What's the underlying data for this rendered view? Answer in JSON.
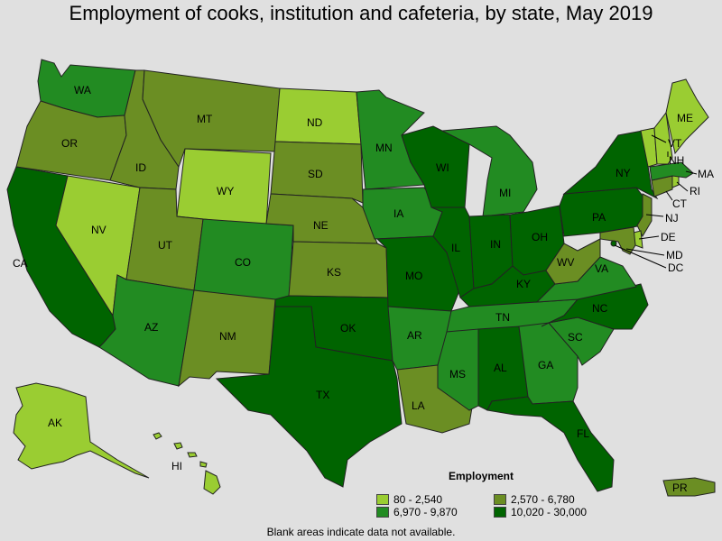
{
  "title": "Employment of cooks, institution and cafeteria, by state, May 2019",
  "footnote": "Blank areas indicate data not available.",
  "legend": {
    "title": "Employment",
    "items": [
      {
        "label": "80 - 2,540",
        "color": "#9acd32"
      },
      {
        "label": "2,570 - 6,780",
        "color": "#6b8e23"
      },
      {
        "label": "6,970 - 9,870",
        "color": "#228b22"
      },
      {
        "label": "10,020 - 30,000",
        "color": "#006400"
      }
    ]
  },
  "colors": {
    "low": "#9acd32",
    "midlow": "#6b8e23",
    "midhigh": "#228b22",
    "high": "#006400",
    "background": "#e0e0e0"
  },
  "states": {
    "WA": {
      "label": "WA",
      "tier": "midhigh"
    },
    "OR": {
      "label": "OR",
      "tier": "midlow"
    },
    "CA": {
      "label": "CA",
      "tier": "high"
    },
    "NV": {
      "label": "NV",
      "tier": "low"
    },
    "ID": {
      "label": "ID",
      "tier": "midlow"
    },
    "MT": {
      "label": "MT",
      "tier": "midlow"
    },
    "WY": {
      "label": "WY",
      "tier": "low"
    },
    "UT": {
      "label": "UT",
      "tier": "midlow"
    },
    "AZ": {
      "label": "AZ",
      "tier": "midhigh"
    },
    "CO": {
      "label": "CO",
      "tier": "midhigh"
    },
    "NM": {
      "label": "NM",
      "tier": "midlow"
    },
    "ND": {
      "label": "ND",
      "tier": "low"
    },
    "SD": {
      "label": "SD",
      "tier": "midlow"
    },
    "NE": {
      "label": "NE",
      "tier": "midlow"
    },
    "KS": {
      "label": "KS",
      "tier": "midlow"
    },
    "OK": {
      "label": "OK",
      "tier": "high"
    },
    "TX": {
      "label": "TX",
      "tier": "high"
    },
    "MN": {
      "label": "MN",
      "tier": "midhigh"
    },
    "IA": {
      "label": "IA",
      "tier": "midhigh"
    },
    "MO": {
      "label": "MO",
      "tier": "high"
    },
    "AR": {
      "label": "AR",
      "tier": "midhigh"
    },
    "LA": {
      "label": "LA",
      "tier": "midlow"
    },
    "WI": {
      "label": "WI",
      "tier": "high"
    },
    "IL": {
      "label": "IL",
      "tier": "high"
    },
    "MI": {
      "label": "MI",
      "tier": "midhigh"
    },
    "IN": {
      "label": "IN",
      "tier": "high"
    },
    "OH": {
      "label": "OH",
      "tier": "high"
    },
    "KY": {
      "label": "KY",
      "tier": "high"
    },
    "TN": {
      "label": "TN",
      "tier": "midhigh"
    },
    "MS": {
      "label": "MS",
      "tier": "midhigh"
    },
    "AL": {
      "label": "AL",
      "tier": "high"
    },
    "GA": {
      "label": "GA",
      "tier": "midhigh"
    },
    "FL": {
      "label": "FL",
      "tier": "high"
    },
    "SC": {
      "label": "SC",
      "tier": "midhigh"
    },
    "NC": {
      "label": "NC",
      "tier": "high"
    },
    "VA": {
      "label": "VA",
      "tier": "midhigh"
    },
    "WV": {
      "label": "WV",
      "tier": "midlow"
    },
    "PA": {
      "label": "PA",
      "tier": "high"
    },
    "NY": {
      "label": "NY",
      "tier": "high"
    },
    "ME": {
      "label": "ME",
      "tier": "low"
    },
    "VT": {
      "label": "VT",
      "tier": "low"
    },
    "NH": {
      "label": "NH",
      "tier": "low"
    },
    "MA": {
      "label": "MA",
      "tier": "midhigh"
    },
    "RI": {
      "label": "RI",
      "tier": "low"
    },
    "CT": {
      "label": "CT",
      "tier": "midlow"
    },
    "NJ": {
      "label": "NJ",
      "tier": "midlow"
    },
    "DE": {
      "label": "DE",
      "tier": "low"
    },
    "MD": {
      "label": "MD",
      "tier": "midlow"
    },
    "DC": {
      "label": "DC",
      "tier": "high"
    },
    "AK": {
      "label": "AK",
      "tier": "low"
    },
    "HI": {
      "label": "HI",
      "tier": "low"
    },
    "PR": {
      "label": "PR",
      "tier": "midlow"
    }
  }
}
